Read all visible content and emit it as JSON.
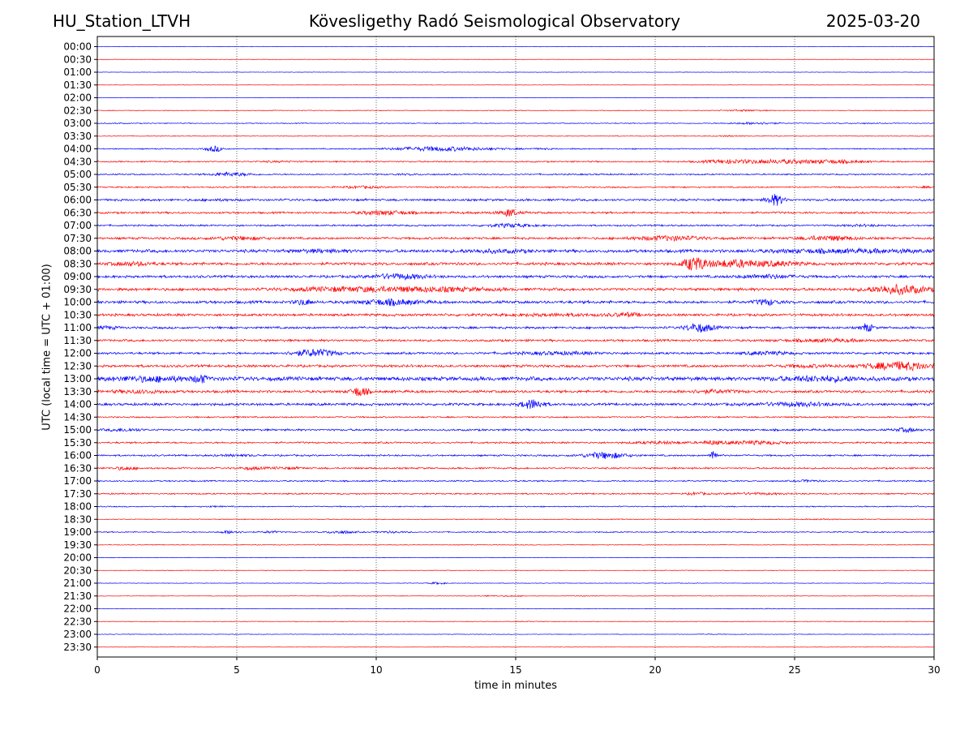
{
  "header": {
    "station": "HU_Station_LTVH",
    "title": "Kövesligethy Radó Seismological Observatory",
    "date": "2025-03-20"
  },
  "colors": {
    "even_rows": "#0000ff",
    "odd_rows": "#ff0000",
    "grid": "#000000"
  },
  "chart_data": {
    "type": "line",
    "title": "Kövesligethy Radó Seismological Observatory",
    "xlabel": "time in minutes",
    "ylabel": "UTC (local time = UTC + 01:00)",
    "xlim": [
      0,
      30
    ],
    "xticks": [
      0,
      5,
      10,
      15,
      20,
      25,
      30
    ],
    "vertical_grid": "dotted at 5, 10, 15, 20, 25",
    "rows": [
      {
        "label": "00:00",
        "color": "blue",
        "amp": 0.3,
        "bursts": []
      },
      {
        "label": "00:30",
        "color": "red",
        "amp": 0.3,
        "bursts": []
      },
      {
        "label": "01:00",
        "color": "blue",
        "amp": 0.3,
        "bursts": []
      },
      {
        "label": "01:30",
        "color": "red",
        "amp": 0.3,
        "bursts": []
      },
      {
        "label": "02:00",
        "color": "blue",
        "amp": 0.3,
        "bursts": []
      },
      {
        "label": "02:30",
        "color": "red",
        "amp": 0.5,
        "bursts": [
          [
            6.3,
            0.6,
            1.2
          ],
          [
            23.2,
            0.8,
            2.5
          ]
        ]
      },
      {
        "label": "03:00",
        "color": "blue",
        "amp": 0.6,
        "bursts": [
          [
            0.5,
            0.6,
            1.5
          ],
          [
            22.8,
            0.6,
            1.5
          ],
          [
            23.7,
            0.7,
            3
          ],
          [
            27.3,
            0.6,
            1.5
          ]
        ]
      },
      {
        "label": "03:30",
        "color": "red",
        "amp": 0.5,
        "bursts": [
          [
            22.6,
            0.5,
            2
          ]
        ]
      },
      {
        "label": "04:00",
        "color": "blue",
        "amp": 0.8,
        "bursts": [
          [
            4.2,
            0.3,
            5
          ],
          [
            12.3,
            1.8,
            4
          ],
          [
            16,
            0.8,
            1.5
          ]
        ]
      },
      {
        "label": "04:30",
        "color": "red",
        "amp": 1.0,
        "bursts": [
          [
            6.5,
            0.8,
            1.5
          ],
          [
            22.5,
            1.0,
            2.5
          ],
          [
            24.5,
            1.5,
            3
          ],
          [
            26.5,
            1.0,
            2.5
          ]
        ]
      },
      {
        "label": "05:00",
        "color": "blue",
        "amp": 1.0,
        "bursts": [
          [
            4.8,
            0.7,
            3
          ],
          [
            11.2,
            0.6,
            1.5
          ],
          [
            18,
            0.8,
            1.2
          ]
        ]
      },
      {
        "label": "05:30",
        "color": "red",
        "amp": 1.0,
        "bursts": [
          [
            9.5,
            0.8,
            2
          ],
          [
            29.7,
            0.3,
            1.5
          ]
        ]
      },
      {
        "label": "06:00",
        "color": "blue",
        "amp": 1.6,
        "bursts": [
          [
            4.3,
            0.8,
            1.3
          ],
          [
            24.3,
            0.3,
            5
          ]
        ]
      },
      {
        "label": "06:30",
        "color": "red",
        "amp": 1.4,
        "bursts": [
          [
            10.3,
            1.0,
            2.5
          ],
          [
            14.5,
            1.0,
            1.6
          ],
          [
            14.8,
            0.2,
            4
          ]
        ]
      },
      {
        "label": "07:00",
        "color": "blue",
        "amp": 1.2,
        "bursts": [
          [
            14.8,
            0.8,
            2.5
          ],
          [
            27.5,
            0.8,
            1.6
          ]
        ]
      },
      {
        "label": "07:30",
        "color": "red",
        "amp": 1.6,
        "bursts": [
          [
            5,
            1.0,
            2
          ],
          [
            20.5,
            1.2,
            2.5
          ],
          [
            26.2,
            1.0,
            2.5
          ]
        ]
      },
      {
        "label": "08:00",
        "color": "blue",
        "amp": 2.2,
        "bursts": [
          [
            8,
            1.0,
            1.5
          ],
          [
            14.2,
            1.2,
            1.6
          ],
          [
            25.8,
            2.0,
            1.6
          ],
          [
            28.5,
            1.5,
            1.5
          ]
        ]
      },
      {
        "label": "08:30",
        "color": "red",
        "amp": 2.0,
        "bursts": [
          [
            1.3,
            0.8,
            1.8
          ],
          [
            21.4,
            0.4,
            5
          ],
          [
            22.8,
            1.0,
            3
          ],
          [
            24.5,
            0.8,
            2
          ]
        ]
      },
      {
        "label": "09:00",
        "color": "blue",
        "amp": 1.8,
        "bursts": [
          [
            10.8,
            1.0,
            2.5
          ],
          [
            24,
            1.0,
            2
          ]
        ]
      },
      {
        "label": "09:30",
        "color": "red",
        "amp": 2.0,
        "bursts": [
          [
            9,
            2.0,
            2
          ],
          [
            12,
            2.0,
            2
          ],
          [
            28.7,
            1.0,
            3.5
          ]
        ]
      },
      {
        "label": "10:00",
        "color": "blue",
        "amp": 2.0,
        "bursts": [
          [
            7.4,
            0.3,
            2.5
          ],
          [
            10.5,
            1.0,
            2.5
          ],
          [
            24,
            0.4,
            2.5
          ]
        ]
      },
      {
        "label": "10:30",
        "color": "red",
        "amp": 1.8,
        "bursts": [
          [
            16.5,
            2.0,
            1.5
          ],
          [
            19,
            0.5,
            2
          ]
        ]
      },
      {
        "label": "11:00",
        "color": "blue",
        "amp": 1.6,
        "bursts": [
          [
            0.3,
            0.4,
            2
          ],
          [
            21.6,
            0.5,
            4
          ],
          [
            27.6,
            0.2,
            4
          ]
        ]
      },
      {
        "label": "11:30",
        "color": "red",
        "amp": 1.6,
        "bursts": [
          [
            26.2,
            1.5,
            1.8
          ]
        ]
      },
      {
        "label": "12:00",
        "color": "blue",
        "amp": 1.6,
        "bursts": [
          [
            7.8,
            0.8,
            3.5
          ],
          [
            16.5,
            1.5,
            1.8
          ],
          [
            24,
            0.8,
            2
          ]
        ]
      },
      {
        "label": "12:30",
        "color": "red",
        "amp": 1.8,
        "bursts": [
          [
            25.5,
            1.0,
            1.6
          ],
          [
            28.8,
            1.2,
            3.5
          ]
        ]
      },
      {
        "label": "13:00",
        "color": "blue",
        "amp": 2.8,
        "bursts": [
          [
            2,
            1.5,
            1.8
          ],
          [
            3.7,
            0.2,
            2.5
          ],
          [
            26,
            1.5,
            1.8
          ]
        ]
      },
      {
        "label": "13:30",
        "color": "red",
        "amp": 1.8,
        "bursts": [
          [
            1.5,
            1.0,
            1.8
          ],
          [
            9.4,
            0.3,
            4
          ],
          [
            22,
            1.0,
            1.8
          ]
        ]
      },
      {
        "label": "14:00",
        "color": "blue",
        "amp": 1.8,
        "bursts": [
          [
            15.6,
            0.4,
            4
          ],
          [
            25,
            1.5,
            2
          ]
        ]
      },
      {
        "label": "14:30",
        "color": "red",
        "amp": 1.0,
        "bursts": [
          [
            5,
            0.2,
            1.5
          ]
        ]
      },
      {
        "label": "15:00",
        "color": "blue",
        "amp": 1.4,
        "bursts": [
          [
            1,
            0.6,
            2
          ],
          [
            29,
            0.4,
            2.5
          ]
        ]
      },
      {
        "label": "15:30",
        "color": "red",
        "amp": 1.2,
        "bursts": [
          [
            20.2,
            1.0,
            2
          ],
          [
            22,
            0.3,
            2.5
          ],
          [
            23.5,
            1.2,
            2.5
          ]
        ]
      },
      {
        "label": "16:00",
        "color": "blue",
        "amp": 1.2,
        "bursts": [
          [
            5,
            0.8,
            1.6
          ],
          [
            18.2,
            0.8,
            4
          ],
          [
            22.1,
            0.1,
            9
          ]
        ]
      },
      {
        "label": "16:30",
        "color": "red",
        "amp": 1.2,
        "bursts": [
          [
            1,
            0.4,
            2.5
          ],
          [
            5.5,
            0.5,
            2
          ],
          [
            6.8,
            0.6,
            1.8
          ]
        ]
      },
      {
        "label": "17:00",
        "color": "blue",
        "amp": 1.0,
        "bursts": [
          [
            25.5,
            0.4,
            2
          ]
        ]
      },
      {
        "label": "17:30",
        "color": "red",
        "amp": 1.0,
        "bursts": [
          [
            21.5,
            0.3,
            2.5
          ],
          [
            23.5,
            1.0,
            2
          ]
        ]
      },
      {
        "label": "18:00",
        "color": "blue",
        "amp": 0.8,
        "bursts": [
          [
            4.2,
            0.4,
            1.6
          ]
        ]
      },
      {
        "label": "18:30",
        "color": "red",
        "amp": 0.6,
        "bursts": [
          [
            26,
            0.4,
            2
          ]
        ]
      },
      {
        "label": "19:00",
        "color": "blue",
        "amp": 0.8,
        "bursts": [
          [
            4.8,
            0.4,
            3
          ],
          [
            6.2,
            0.3,
            2.5
          ],
          [
            8.7,
            0.5,
            3
          ],
          [
            10.5,
            0.6,
            2
          ]
        ]
      },
      {
        "label": "19:30",
        "color": "red",
        "amp": 0.5,
        "bursts": [
          [
            8,
            0.3,
            2
          ]
        ]
      },
      {
        "label": "20:00",
        "color": "blue",
        "amp": 0.4,
        "bursts": []
      },
      {
        "label": "20:30",
        "color": "red",
        "amp": 0.4,
        "bursts": []
      },
      {
        "label": "21:00",
        "color": "blue",
        "amp": 0.4,
        "bursts": [
          [
            12.2,
            0.3,
            4
          ]
        ]
      },
      {
        "label": "21:30",
        "color": "red",
        "amp": 0.4,
        "bursts": [
          [
            14.5,
            0.8,
            2.5
          ],
          [
            17.5,
            0.4,
            2
          ]
        ]
      },
      {
        "label": "22:00",
        "color": "blue",
        "amp": 0.4,
        "bursts": [
          [
            24,
            0.4,
            1.6
          ]
        ]
      },
      {
        "label": "22:30",
        "color": "red",
        "amp": 0.4,
        "bursts": [
          [
            15.5,
            0.6,
            1.6
          ]
        ]
      },
      {
        "label": "23:00",
        "color": "blue",
        "amp": 0.4,
        "bursts": [
          [
            22,
            0.4,
            1.6
          ]
        ]
      },
      {
        "label": "23:30",
        "color": "red",
        "amp": 0.3,
        "bursts": []
      }
    ]
  }
}
